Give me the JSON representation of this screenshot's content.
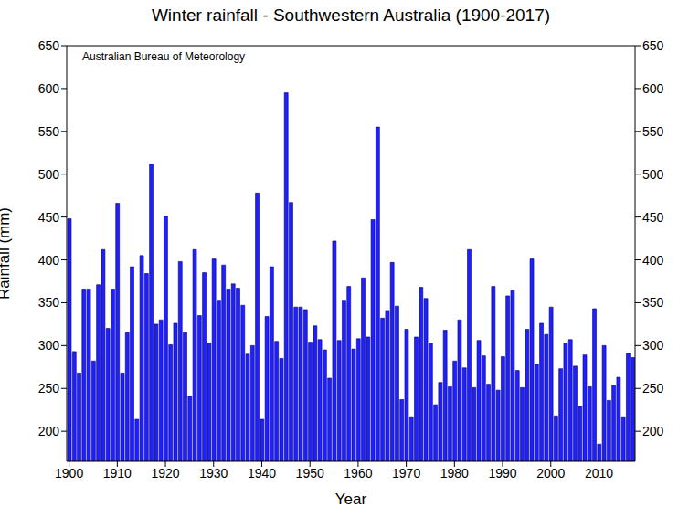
{
  "chart_data": {
    "type": "bar",
    "title": "Winter rainfall - Southwestern Australia (1900-2017)",
    "annotation": "Australian Bureau of Meteorology",
    "x_label": "Year",
    "y_label": "Rainfall (mm)",
    "color": "#1f1fff",
    "x": [
      1900,
      1901,
      1902,
      1903,
      1904,
      1905,
      1906,
      1907,
      1908,
      1909,
      1910,
      1911,
      1912,
      1913,
      1914,
      1915,
      1916,
      1917,
      1918,
      1919,
      1920,
      1921,
      1922,
      1923,
      1924,
      1925,
      1926,
      1927,
      1928,
      1929,
      1930,
      1931,
      1932,
      1933,
      1934,
      1935,
      1936,
      1937,
      1938,
      1939,
      1940,
      1941,
      1942,
      1943,
      1944,
      1945,
      1946,
      1947,
      1948,
      1949,
      1950,
      1951,
      1952,
      1953,
      1954,
      1955,
      1956,
      1957,
      1958,
      1959,
      1960,
      1961,
      1962,
      1963,
      1964,
      1965,
      1966,
      1967,
      1968,
      1969,
      1970,
      1971,
      1972,
      1973,
      1974,
      1975,
      1976,
      1977,
      1978,
      1979,
      1980,
      1981,
      1982,
      1983,
      1984,
      1985,
      1986,
      1987,
      1988,
      1989,
      1990,
      1991,
      1992,
      1993,
      1994,
      1995,
      1996,
      1997,
      1998,
      1999,
      2000,
      2001,
      2002,
      2003,
      2004,
      2005,
      2006,
      2007,
      2008,
      2009,
      2010,
      2011,
      2012,
      2013,
      2014,
      2015,
      2016,
      2017
    ],
    "values": [
      448,
      293,
      268,
      366,
      366,
      282,
      371,
      412,
      320,
      366,
      466,
      268,
      315,
      392,
      214,
      405,
      384,
      512,
      325,
      330,
      451,
      301,
      326,
      398,
      315,
      241,
      412,
      335,
      385,
      303,
      401,
      353,
      394,
      366,
      372,
      367,
      347,
      290,
      300,
      478,
      214,
      334,
      392,
      305,
      285,
      595,
      467,
      345,
      345,
      342,
      304,
      323,
      307,
      295,
      262,
      422,
      306,
      353,
      369,
      296,
      308,
      379,
      310,
      447,
      555,
      332,
      341,
      397,
      346,
      237,
      319,
      217,
      310,
      368,
      355,
      303,
      231,
      257,
      318,
      252,
      282,
      330,
      274,
      412,
      251,
      306,
      288,
      255,
      369,
      248,
      287,
      358,
      364,
      271,
      251,
      319,
      401,
      278,
      326,
      313,
      345,
      218,
      273,
      303,
      307,
      276,
      229,
      289,
      252,
      343,
      185,
      300,
      236,
      254,
      263,
      217,
      291,
      286
    ],
    "xlim": [
      1899.5,
      2017.5
    ],
    "xticks": [
      1900,
      1910,
      1920,
      1930,
      1940,
      1950,
      1960,
      1970,
      1980,
      1990,
      2000,
      2010
    ],
    "ylim": [
      165,
      650
    ],
    "yticks": [
      200,
      250,
      300,
      350,
      400,
      450,
      500,
      550,
      600,
      650
    ],
    "y2lim": [
      165,
      650
    ],
    "y2ticks": [
      200,
      250,
      300,
      350,
      400,
      450,
      500,
      550,
      600,
      650
    ]
  }
}
